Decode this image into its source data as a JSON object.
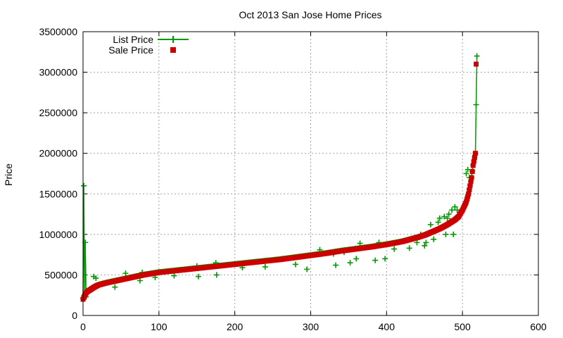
{
  "chart_data": {
    "type": "line",
    "title": "Oct 2013 San Jose Home Prices",
    "xlabel": "",
    "ylabel": "Price",
    "xlim": [
      0,
      600
    ],
    "ylim": [
      0,
      3500000
    ],
    "x_ticks": [
      0,
      100,
      200,
      300,
      400,
      500,
      600
    ],
    "y_ticks": [
      0,
      500000,
      1000000,
      1500000,
      2000000,
      2500000,
      3000000,
      3500000
    ],
    "grid": true,
    "legend_position": "top-left",
    "colors": {
      "list": "#009900",
      "sale": "#cc0000"
    },
    "sale_curve": [
      [
        0,
        200000
      ],
      [
        1,
        220000
      ],
      [
        3,
        260000
      ],
      [
        5,
        290000
      ],
      [
        10,
        320000
      ],
      [
        15,
        350000
      ],
      [
        20,
        375000
      ],
      [
        30,
        400000
      ],
      [
        40,
        420000
      ],
      [
        50,
        440000
      ],
      [
        60,
        460000
      ],
      [
        70,
        480000
      ],
      [
        80,
        500000
      ],
      [
        90,
        515000
      ],
      [
        100,
        530000
      ],
      [
        120,
        550000
      ],
      [
        140,
        570000
      ],
      [
        160,
        590000
      ],
      [
        180,
        610000
      ],
      [
        200,
        630000
      ],
      [
        220,
        650000
      ],
      [
        240,
        670000
      ],
      [
        260,
        690000
      ],
      [
        280,
        715000
      ],
      [
        300,
        740000
      ],
      [
        320,
        765000
      ],
      [
        340,
        795000
      ],
      [
        360,
        820000
      ],
      [
        380,
        845000
      ],
      [
        400,
        875000
      ],
      [
        420,
        910000
      ],
      [
        440,
        960000
      ],
      [
        450,
        990000
      ],
      [
        460,
        1030000
      ],
      [
        470,
        1070000
      ],
      [
        480,
        1120000
      ],
      [
        490,
        1180000
      ],
      [
        495,
        1220000
      ],
      [
        500,
        1300000
      ],
      [
        505,
        1400000
      ],
      [
        508,
        1500000
      ],
      [
        510,
        1600000
      ],
      [
        512,
        1700000
      ],
      [
        514,
        1850000
      ],
      [
        515,
        1900000
      ],
      [
        516,
        1950000
      ],
      [
        517,
        2000000
      ],
      [
        518,
        3100000
      ]
    ],
    "list_curve": [
      [
        0,
        210000
      ],
      [
        1,
        1600000
      ],
      [
        2,
        250000
      ],
      [
        3,
        900000
      ],
      [
        4,
        230000
      ],
      [
        5,
        300000
      ],
      [
        10,
        330000
      ],
      [
        15,
        360000
      ],
      [
        20,
        380000
      ],
      [
        30,
        405000
      ],
      [
        40,
        425000
      ],
      [
        50,
        445000
      ],
      [
        60,
        465000
      ],
      [
        70,
        485000
      ],
      [
        80,
        505000
      ],
      [
        90,
        520000
      ],
      [
        100,
        535000
      ],
      [
        120,
        555000
      ],
      [
        140,
        575000
      ],
      [
        160,
        595000
      ],
      [
        180,
        615000
      ],
      [
        200,
        635000
      ],
      [
        220,
        655000
      ],
      [
        240,
        675000
      ],
      [
        260,
        695000
      ],
      [
        280,
        720000
      ],
      [
        300,
        745000
      ],
      [
        320,
        770000
      ],
      [
        340,
        800000
      ],
      [
        360,
        825000
      ],
      [
        380,
        850000
      ],
      [
        400,
        880000
      ],
      [
        420,
        915000
      ],
      [
        440,
        965000
      ],
      [
        450,
        995000
      ],
      [
        460,
        1035000
      ],
      [
        470,
        1075000
      ],
      [
        480,
        1125000
      ],
      [
        490,
        1185000
      ],
      [
        495,
        1225000
      ],
      [
        500,
        1305000
      ],
      [
        505,
        1405000
      ],
      [
        508,
        1505000
      ],
      [
        510,
        1605000
      ],
      [
        512,
        1705000
      ],
      [
        514,
        1855000
      ],
      [
        515,
        1905000
      ],
      [
        516,
        1955000
      ],
      [
        517,
        2000000
      ],
      [
        518,
        2600000
      ],
      [
        519,
        3200000
      ]
    ],
    "list_outliers": [
      [
        14,
        480000
      ],
      [
        17,
        460000
      ],
      [
        42,
        350000
      ],
      [
        56,
        520000
      ],
      [
        75,
        430000
      ],
      [
        78,
        530000
      ],
      [
        95,
        470000
      ],
      [
        120,
        490000
      ],
      [
        150,
        610000
      ],
      [
        152,
        480000
      ],
      [
        175,
        650000
      ],
      [
        176,
        500000
      ],
      [
        210,
        590000
      ],
      [
        240,
        600000
      ],
      [
        262,
        700000
      ],
      [
        280,
        630000
      ],
      [
        295,
        570000
      ],
      [
        312,
        810000
      ],
      [
        330,
        760000
      ],
      [
        333,
        620000
      ],
      [
        344,
        780000
      ],
      [
        352,
        650000
      ],
      [
        360,
        700000
      ],
      [
        365,
        890000
      ],
      [
        385,
        680000
      ],
      [
        390,
        900000
      ],
      [
        398,
        700000
      ],
      [
        410,
        820000
      ],
      [
        430,
        830000
      ],
      [
        440,
        900000
      ],
      [
        445,
        1000000
      ],
      [
        450,
        860000
      ],
      [
        452,
        900000
      ],
      [
        458,
        1120000
      ],
      [
        462,
        940000
      ],
      [
        468,
        1150000
      ],
      [
        470,
        1200000
      ],
      [
        476,
        1220000
      ],
      [
        478,
        1000000
      ],
      [
        480,
        1200000
      ],
      [
        482,
        1250000
      ],
      [
        484,
        1160000
      ],
      [
        486,
        1300000
      ],
      [
        488,
        1000000
      ],
      [
        490,
        1340000
      ],
      [
        493,
        1300000
      ],
      [
        505,
        1750000
      ],
      [
        507,
        1800000
      ],
      [
        509,
        1700000
      ]
    ],
    "legend": [
      {
        "label": "List Price",
        "series": "list"
      },
      {
        "label": "Sale Price",
        "series": "sale"
      }
    ]
  }
}
